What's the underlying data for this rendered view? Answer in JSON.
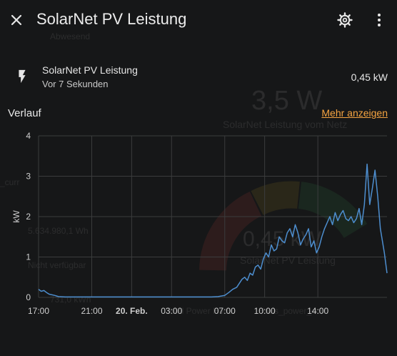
{
  "background": {
    "status": "Abwesend",
    "big_value": "3,5 W",
    "big_caption": "SolarNet Leistung vom Netz",
    "side_text": "_curr",
    "energy": "5.634.980,1 Wh",
    "unavailable": "Nicht verfügbar",
    "small_value": "731,0 kWh",
    "gauge_value": "0,45 kW",
    "gauge_caption": "SolarNet PV Leistung",
    "bottom_caption": "Total Power Haus",
    "bottom_caption2": "Haus_power_curr"
  },
  "header": {
    "title": "SolarNet PV Leistung",
    "close_icon": "close-icon",
    "settings_icon": "gear-icon",
    "menu_icon": "more-vert-icon"
  },
  "entity": {
    "icon": "flash-icon",
    "name": "SolarNet PV Leistung",
    "last_changed": "Vor 7 Sekunden",
    "state": "0,45 kW"
  },
  "history": {
    "title": "Verlauf",
    "more_link": "Mehr anzeigen"
  },
  "colors": {
    "line": "#4d8ecf",
    "accent": "#f5a441",
    "grid": "#3b3c3d"
  },
  "chart_data": {
    "type": "line",
    "ylabel": "kW",
    "ylim": [
      0,
      4
    ],
    "yticks": [
      "0",
      "1",
      "2",
      "3",
      "4"
    ],
    "xticks": [
      "17:00",
      "21:00",
      "20. Feb.",
      "03:00",
      "07:00",
      "10:00",
      "14:00"
    ],
    "x_hours": [
      0,
      4,
      7,
      10,
      14,
      17,
      21
    ],
    "x_range_hours": [
      0,
      26.2
    ],
    "series": [
      {
        "x": [
          0,
          0.2,
          0.4,
          0.6,
          0.8,
          1.2,
          1.5,
          2,
          3,
          6,
          9,
          12,
          13,
          13.5,
          14,
          14.3,
          14.6,
          14.9,
          15.1,
          15.3,
          15.5,
          15.7,
          15.9,
          16.1,
          16.3,
          16.5,
          16.7,
          16.9,
          17.1,
          17.3,
          17.5,
          17.7,
          17.9,
          18.1,
          18.3,
          18.5,
          18.7,
          18.9,
          19.1,
          19.3,
          19.5,
          19.7,
          19.9,
          20.1,
          20.3,
          20.5,
          20.7,
          20.9,
          21.1,
          21.3,
          21.5,
          21.7,
          21.9,
          22.1,
          22.3,
          22.5,
          22.7,
          22.9,
          23.1,
          23.3,
          23.5,
          23.7,
          23.9,
          24.1,
          24.3,
          24.5,
          24.7,
          24.9,
          25.1,
          25.3,
          25.5,
          25.7,
          26,
          26.2
        ],
        "y": [
          0.2,
          0.15,
          0.17,
          0.12,
          0.08,
          0.05,
          0.02,
          0.01,
          0.01,
          0.01,
          0.01,
          0.01,
          0.01,
          0.02,
          0.05,
          0.12,
          0.2,
          0.25,
          0.35,
          0.45,
          0.5,
          0.42,
          0.6,
          0.55,
          0.75,
          0.8,
          0.7,
          0.95,
          1.1,
          1.0,
          1.3,
          1.15,
          1.2,
          1.5,
          1.4,
          1.35,
          1.6,
          1.7,
          1.5,
          1.8,
          1.6,
          1.3,
          1.45,
          1.55,
          1.7,
          1.25,
          1.4,
          1.1,
          1.25,
          1.5,
          1.7,
          1.85,
          2.0,
          1.8,
          2.1,
          1.9,
          2.05,
          2.15,
          1.95,
          1.9,
          2.0,
          1.85,
          1.95,
          2.2,
          1.8,
          2.3,
          3.3,
          2.3,
          2.7,
          3.15,
          2.5,
          1.7,
          1.1,
          0.6
        ]
      }
    ]
  }
}
